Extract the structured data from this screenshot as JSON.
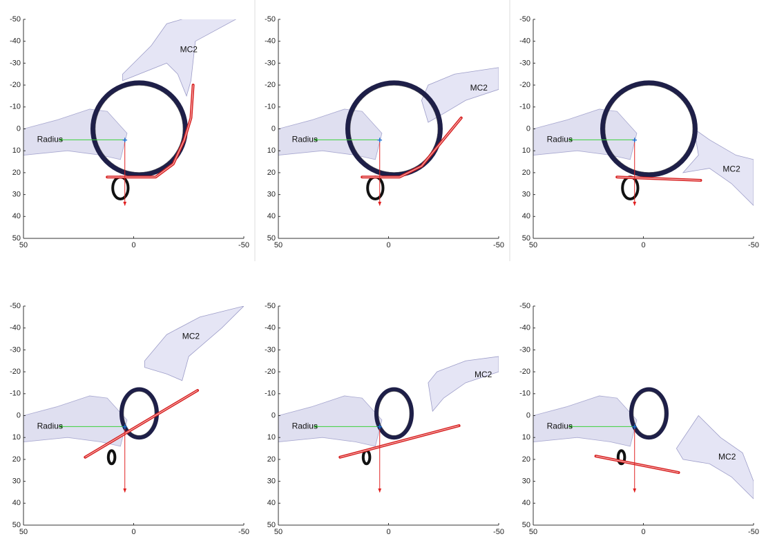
{
  "chart_data": [
    {
      "type": "pose",
      "xlim": [
        50,
        -50
      ],
      "ylim": [
        -50,
        50
      ],
      "xticks": [
        50,
        0,
        -50
      ],
      "yticks": [
        -50,
        -40,
        -30,
        -20,
        -10,
        0,
        10,
        20,
        30,
        40,
        50
      ],
      "annotations": [
        "Radius",
        "MC2"
      ]
    },
    {
      "type": "pose",
      "xlim": [
        50,
        -50
      ],
      "ylim": [
        -50,
        50
      ],
      "xticks": [
        50,
        0,
        -50
      ],
      "yticks": [
        -50,
        -40,
        -30,
        -20,
        -10,
        0,
        10,
        20,
        30,
        40,
        50
      ],
      "annotations": [
        "Radius",
        "MC2"
      ]
    },
    {
      "type": "pose",
      "xlim": [
        50,
        -50
      ],
      "ylim": [
        -50,
        50
      ],
      "xticks": [
        50,
        0,
        -50
      ],
      "yticks": [
        -50,
        -40,
        -30,
        -20,
        -10,
        0,
        10,
        20,
        30,
        40,
        50
      ],
      "annotations": [
        "Radius",
        "MC2"
      ]
    },
    {
      "type": "pose",
      "xlim": [
        50,
        -50
      ],
      "ylim": [
        -50,
        50
      ],
      "xticks": [
        50,
        0,
        -50
      ],
      "yticks": [
        -50,
        -40,
        -30,
        -20,
        -10,
        0,
        10,
        20,
        30,
        40,
        50
      ],
      "annotations": [
        "Radius",
        "MC2"
      ]
    },
    {
      "type": "pose",
      "xlim": [
        50,
        -50
      ],
      "ylim": [
        -50,
        50
      ],
      "xticks": [
        50,
        0,
        -50
      ],
      "yticks": [
        -50,
        -40,
        -30,
        -20,
        -10,
        0,
        10,
        20,
        30,
        40,
        50
      ],
      "annotations": [
        "Radius",
        "MC2"
      ]
    },
    {
      "type": "pose",
      "xlim": [
        50,
        -50
      ],
      "ylim": [
        -50,
        50
      ],
      "xticks": [
        50,
        0,
        -50
      ],
      "yticks": [
        -50,
        -40,
        -30,
        -20,
        -10,
        0,
        10,
        20,
        30,
        40,
        50
      ],
      "annotations": [
        "Radius",
        "MC2"
      ]
    }
  ]
}
